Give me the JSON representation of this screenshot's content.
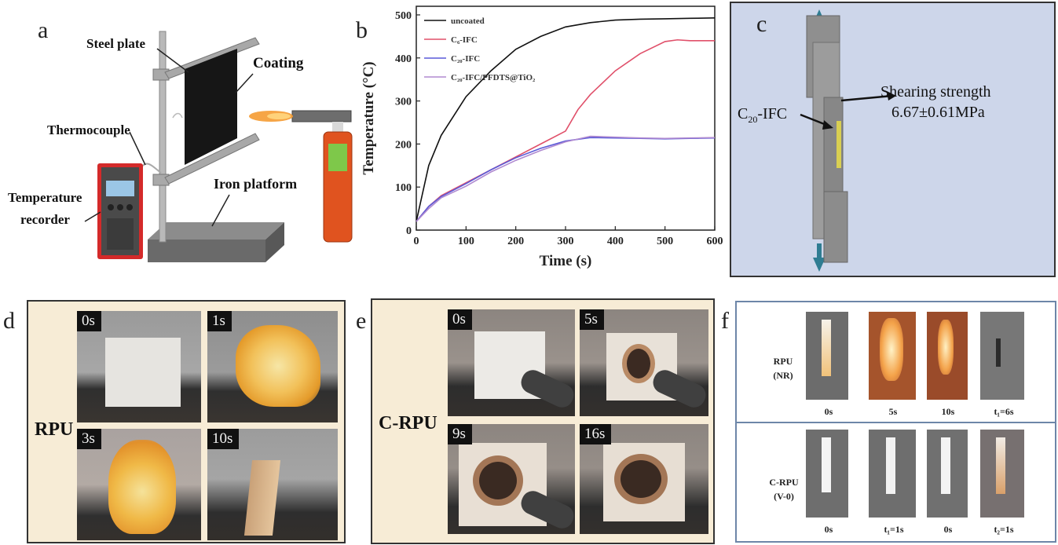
{
  "panels": {
    "a": {
      "label": "a",
      "steel_plate": "Steel plate",
      "coating": "Coating",
      "thermocouple": "Thermocouple",
      "temperature_recorder_1": "Temperature",
      "temperature_recorder_2": "recorder",
      "iron_platform": "Iron platform"
    },
    "b": {
      "label": "b"
    },
    "c": {
      "label": "c",
      "specimen_label": "C",
      "specimen_sub": "20",
      "specimen_suffix": "-IFC",
      "shear_title": "Shearing strength",
      "shear_value": "6.67±0.61MPa"
    },
    "d": {
      "label": "d",
      "sample": "RPU",
      "times": [
        "0s",
        "1s",
        "3s",
        "10s"
      ]
    },
    "e": {
      "label": "e",
      "sample": "C-RPU",
      "times": [
        "0s",
        "5s",
        "9s",
        "16s"
      ]
    },
    "f": {
      "label": "f",
      "row1_name": "RPU",
      "row1_rating": "(NR)",
      "row2_name": "C-RPU",
      "row2_rating": "(V-0)",
      "row1_times": [
        "0s",
        "5s",
        "10s",
        "t₁=6s"
      ],
      "row2_times": [
        "0s",
        "t₁=1s",
        "0s",
        "t₂=1s"
      ]
    }
  },
  "chart_data": {
    "type": "line",
    "xlabel": "Time (s)",
    "ylabel": "Temperature (°C)",
    "xlim": [
      0,
      600
    ],
    "ylim": [
      0,
      520
    ],
    "xticks": [
      0,
      100,
      200,
      300,
      400,
      500,
      600
    ],
    "yticks": [
      0,
      100,
      200,
      300,
      400,
      500
    ],
    "legend_position": "top-left",
    "series": [
      {
        "name": "uncoated",
        "color": "#111111",
        "x": [
          0,
          25,
          50,
          100,
          150,
          200,
          250,
          300,
          350,
          400,
          450,
          500,
          550,
          600
        ],
        "y": [
          20,
          150,
          220,
          310,
          370,
          420,
          450,
          472,
          482,
          488,
          490,
          491,
          492,
          493
        ]
      },
      {
        "name": "C₆-IFC",
        "color": "#e0506a",
        "x": [
          0,
          25,
          50,
          100,
          150,
          200,
          250,
          300,
          325,
          350,
          400,
          450,
          500,
          525,
          550,
          600
        ],
        "y": [
          20,
          55,
          80,
          110,
          140,
          170,
          200,
          230,
          280,
          315,
          370,
          410,
          438,
          442,
          440,
          440
        ]
      },
      {
        "name": "C₂₀-IFC",
        "color": "#5a5ad8",
        "x": [
          0,
          25,
          50,
          100,
          150,
          200,
          250,
          300,
          350,
          400,
          450,
          500,
          550,
          600
        ],
        "y": [
          20,
          55,
          78,
          108,
          140,
          168,
          190,
          207,
          215,
          214,
          213,
          212,
          213,
          214
        ]
      },
      {
        "name": "C₂₀-IFC/PFDTS@TiO₂",
        "color": "#b08ad0",
        "x": [
          0,
          25,
          50,
          100,
          150,
          200,
          250,
          300,
          350,
          400,
          450,
          500,
          550,
          600
        ],
        "y": [
          20,
          50,
          75,
          102,
          135,
          162,
          185,
          205,
          218,
          216,
          214,
          213,
          214,
          215
        ]
      }
    ]
  },
  "colors": {
    "panel_c_bg": "#cdd6ea",
    "panel_df_bg": "#f7ecd6",
    "panel_f_border": "#6d86a8",
    "recorder_red": "#d42a2a",
    "bottle_orange": "#e0531f"
  }
}
